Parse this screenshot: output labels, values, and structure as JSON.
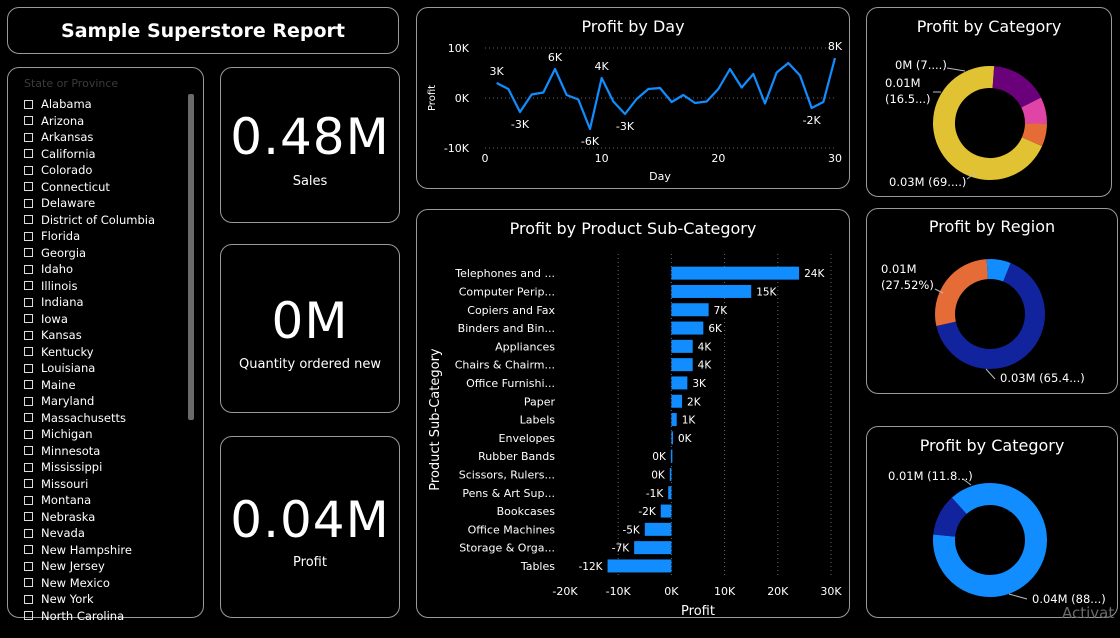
{
  "report_title": "Sample Superstore Report",
  "slicer": {
    "placeholder": "State or Province",
    "items": [
      "Alabama",
      "Arizona",
      "Arkansas",
      "California",
      "Colorado",
      "Connecticut",
      "Delaware",
      "District of Columbia",
      "Florida",
      "Georgia",
      "Idaho",
      "Illinois",
      "Indiana",
      "Iowa",
      "Kansas",
      "Kentucky",
      "Louisiana",
      "Maine",
      "Maryland",
      "Massachusetts",
      "Michigan",
      "Minnesota",
      "Mississippi",
      "Missouri",
      "Montana",
      "Nebraska",
      "Nevada",
      "New Hampshire",
      "New Jersey",
      "New Mexico",
      "New York",
      "North Carolina"
    ]
  },
  "kpis": [
    {
      "value": "0.48M",
      "label": "Sales"
    },
    {
      "value": "0M",
      "label": "Quantity ordered new"
    },
    {
      "value": "0.04M",
      "label": "Profit"
    }
  ],
  "watermark": "Activat",
  "colors": {
    "blue": "#118dff",
    "navy": "#12239e",
    "orange": "#e66c37",
    "purple": "#6b007b",
    "pink": "#e044a7",
    "yellow": "#e1c233"
  },
  "chart_data": [
    {
      "id": "profit_by_day",
      "type": "line",
      "title": "Profit by Day",
      "xlabel": "Day",
      "ylabel": "Profit",
      "xlim": [
        0,
        30
      ],
      "ylim": [
        -10000,
        10000
      ],
      "xticks": [
        0,
        10,
        20,
        30
      ],
      "yticks": [
        {
          "v": 10000,
          "label": "10K"
        },
        {
          "v": 0,
          "label": "0K"
        },
        {
          "v": -10000,
          "label": "-10K"
        }
      ],
      "x": [
        1,
        2,
        3,
        4,
        5,
        6,
        7,
        8,
        9,
        10,
        11,
        12,
        13,
        14,
        15,
        16,
        17,
        18,
        19,
        20,
        21,
        22,
        23,
        24,
        25,
        26,
        27,
        28,
        29,
        30
      ],
      "values": [
        3000,
        1800,
        -2800,
        700,
        1100,
        5800,
        600,
        -300,
        -6200,
        4000,
        -700,
        -3200,
        -200,
        1800,
        2000,
        -800,
        600,
        -1000,
        -700,
        1800,
        5800,
        2100,
        4800,
        -1100,
        5100,
        7000,
        4500,
        -2000,
        -800,
        8000
      ],
      "data_labels": [
        {
          "x": 1,
          "y": 3000,
          "label": "3K",
          "pos": "above"
        },
        {
          "x": 3,
          "y": -2800,
          "label": "-3K",
          "pos": "below"
        },
        {
          "x": 6,
          "y": 5800,
          "label": "6K",
          "pos": "above"
        },
        {
          "x": 9,
          "y": -6200,
          "label": "-6K",
          "pos": "below"
        },
        {
          "x": 10,
          "y": 4000,
          "label": "4K",
          "pos": "above"
        },
        {
          "x": 12,
          "y": -3200,
          "label": "-3K",
          "pos": "below"
        },
        {
          "x": 28,
          "y": -2000,
          "label": "-2K",
          "pos": "below"
        },
        {
          "x": 30,
          "y": 8000,
          "label": "8K",
          "pos": "above"
        }
      ],
      "grid": true,
      "color": "#118dff"
    },
    {
      "id": "profit_by_subcategory",
      "type": "bar",
      "orientation": "horizontal",
      "title": "Profit by Product Sub-Category",
      "xlabel": "Profit",
      "ylabel": "Product Sub-Category",
      "xlim": [
        -20000,
        30000
      ],
      "xticks": [
        {
          "v": -20000,
          "label": "-20K"
        },
        {
          "v": -10000,
          "label": "-10K"
        },
        {
          "v": 0,
          "label": "0K"
        },
        {
          "v": 10000,
          "label": "10K"
        },
        {
          "v": 20000,
          "label": "20K"
        },
        {
          "v": 30000,
          "label": "30K"
        }
      ],
      "categories": [
        "Telephones and ...",
        "Computer Perip...",
        "Copiers and Fax",
        "Binders and Bin...",
        "Appliances",
        "Chairs & Chairm...",
        "Office Furnishi...",
        "Paper",
        "Labels",
        "Envelopes",
        "Rubber Bands",
        "Scissors, Rulers...",
        "Pens & Art Sup...",
        "Bookcases",
        "Office Machines",
        "Storage & Orga...",
        "Tables"
      ],
      "values": [
        24000,
        15000,
        7000,
        6000,
        4000,
        4000,
        3000,
        2000,
        1000,
        300,
        -100,
        -300,
        -600,
        -2000,
        -5000,
        -7000,
        -12000
      ],
      "value_labels": [
        "24K",
        "15K",
        "7K",
        "6K",
        "4K",
        "4K",
        "3K",
        "2K",
        "1K",
        "0K",
        "0K",
        "0K",
        "-1K",
        "-2K",
        "-5K",
        "-7K",
        "-12K"
      ],
      "grid": true,
      "color": "#118dff"
    },
    {
      "id": "profit_by_category_1",
      "type": "pie",
      "donut": true,
      "title": "Profit by Category",
      "slices": [
        {
          "value": 69.5,
          "color": "#e1c233",
          "label": "0.03M (69....)"
        },
        {
          "value": 16.5,
          "color": "#6b007b",
          "label": "0.01M (16.5...)"
        },
        {
          "value": 7.5,
          "color": "#e044a7",
          "label": "0M (7....)"
        },
        {
          "value": 6.5,
          "color": "#e66c37",
          "label": ""
        }
      ]
    },
    {
      "id": "profit_by_region",
      "type": "pie",
      "donut": true,
      "title": "Profit by Region",
      "slices": [
        {
          "value": 65.4,
          "color": "#12239e",
          "label": "0.03M (65.4...)"
        },
        {
          "value": 27.52,
          "color": "#e66c37",
          "label": "0.01M (27.52%)"
        },
        {
          "value": 7.08,
          "color": "#118dff",
          "label": ""
        }
      ]
    },
    {
      "id": "profit_by_category_2",
      "type": "pie",
      "donut": true,
      "title": "Profit by Category",
      "slices": [
        {
          "value": 88.2,
          "color": "#118dff",
          "label": "0.04M (88...)"
        },
        {
          "value": 11.8,
          "color": "#12239e",
          "label": "0.01M (11.8...)"
        }
      ]
    }
  ]
}
